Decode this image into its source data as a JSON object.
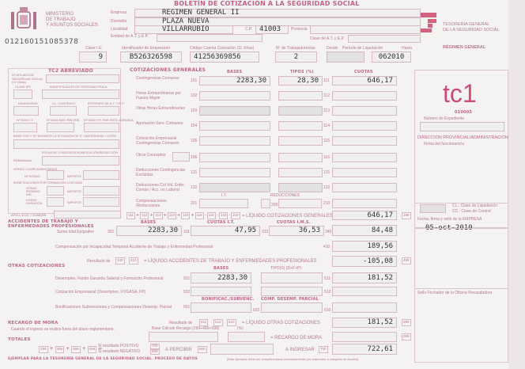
{
  "header": {
    "title": "BOLETÍN DE COTIZACIÓN A LA SEGURIDAD SOCIAL",
    "ministry": [
      "MINISTERIO",
      "DE TRABAJO",
      "Y ASUNTOS SOCIALES"
    ],
    "tgss": [
      "TESORERÍA GENERAL",
      "DE LA SEGURIDAD SOCIAL"
    ],
    "regimen": "RÉGIMEN GENERAL",
    "barcode_number": "012160151085378",
    "accent": "#c0648a"
  },
  "empresa": {
    "empresa_label": "Empresa",
    "empresa": "REGIMEN GENERAL II",
    "domicilio_label": "Domicilio",
    "domicilio": "PLAZA NUEVA",
    "localidad_label": "Localidad",
    "localidad": "VILLARRUBIO",
    "cp_label": "C.P.",
    "cp": "41003",
    "provincia_label": "Provincia",
    "entidad_label": "Entidad de A.T. y E.P.",
    "clave_at_label": "Clave de A.T. y E.P."
  },
  "ids": {
    "clave_ie_label": "Clave I.E.",
    "clave_ie": "9",
    "identificador_label": "Identificador de Empresario",
    "identificador": "B526326598",
    "ccc_label": "Código Cuenta Cotización (11 cifras)",
    "ccc": "41256369856",
    "trabajadores_label": "Nº de Trabajadores/as",
    "trabajadores": "2",
    "desde_label": "Desde",
    "periodo_label": "Período de Liquidación",
    "hasta_label": "Hasta",
    "hasta": "062010"
  },
  "tc2": {
    "title": "TC2 ABREVIADO",
    "afiliacion": "Nº AFILIACIÓN SEGURIDAD SOCIAL (12 cifras)",
    "clave_ipf": "CLAVE IPF",
    "identificador_pf": "IDENTIFICADOR DE PERSONA FÍSICA",
    "dias_horas": "DÍAS/HORAS",
    "cl_contrato": "CL. CONTRATO",
    "epigrafe": "EPÍGRAFE DE A.T. Y E.P.",
    "dias_it": "Nº DÍAS I.T.",
    "dias_maternidad": "Nº DÍAS MAT./PAT./RIE.",
    "dias_sit": "Nº DÍAS SIT. PAR./RED.JORNADA",
    "base_it": "BASE IT/AT Y EP DURANTE LA SITUACIÓN DE IT / MATERNIDAD / ILEPIB",
    "fecha_bonif": "FECHA DE CONCESIÓN BONIFICACIÓN/REDUCCIÓN",
    "ddmmaaaa": "DDMMAAAA",
    "horas_comp": "HORAS COMPLEMENTARIAS",
    "n_horas": "Nº HORAS",
    "importe": "IMPORTE",
    "bonif_formacion": "BONIFICACIONES POR FORMACIÓN CONTINUA",
    "horas_permiso": "HORAS PERMISO IND.",
    "horas_duracion": "HORAS DURACIÓN",
    "apellidos": "APELLIDOS Y NOMBRE"
  },
  "cotizaciones": {
    "title": "COTIZACIONES GENERALES",
    "bases": "BASES",
    "tipos": "TIPOS (%)",
    "cuotas": "CUOTAS",
    "rows": [
      {
        "label": "Contingencias Comunes",
        "code": "101",
        "base": "2283,30",
        "tipo": "28,30",
        "cuota_code": "111",
        "cuota": "646,17"
      },
      {
        "label": "Horas Extraordinarias por Fuerza Mayor",
        "code": "102",
        "base": "",
        "tipo": "",
        "cuota_code": "112",
        "cuota": ""
      },
      {
        "label": "Otras Horas Extraordinarias",
        "code": "103",
        "base": "",
        "tipo": "",
        "cuota_code": "113",
        "cuota": ""
      },
      {
        "label": "Aportación Serv. Comunes",
        "code": "104",
        "base": "",
        "tipo": "",
        "cuota_code": "114",
        "cuota": ""
      },
      {
        "label": "Cotización Empresarial Contingencias Comunes",
        "code": "105",
        "base": "",
        "tipo": "",
        "cuota_code": "115",
        "cuota": ""
      },
      {
        "label": "Otros Conceptos",
        "code": "106",
        "base": "",
        "tipo": "",
        "cuota_code": "116",
        "cuota": ""
      },
      {
        "label": "Deducciones Contingencias Excluidas",
        "code": "121",
        "base": "",
        "tipo": "",
        "cuota_code": "131",
        "cuota": ""
      },
      {
        "label": "Deducciones Col.Vol. Enfer. Común / Acc. no Laboral",
        "code": "122",
        "base": "",
        "tipo": "",
        "cuota_code": "132",
        "cuota": ""
      },
      {
        "label": "Compensaciones /Reducciones",
        "code": "201",
        "base": "",
        "tipo": "",
        "cuota_code": "210",
        "cuota": ""
      }
    ],
    "it_label": "I.T.",
    "reducciones_label": "REDUCCIONES",
    "reducciones_code": "209",
    "formula": [
      "111",
      "112",
      "113",
      "114",
      "115",
      "116",
      "131",
      "132",
      "210"
    ],
    "liquido_label": "= LÍQUIDO COTIZACIONES GENERALES",
    "liquido": "646,17",
    "liquido_code": "299"
  },
  "accidentes": {
    "title": [
      "ACCIDENTES DE TRABAJO Y",
      "ENFERMEDADES PROFESIONALES"
    ],
    "bases": "BASES",
    "cuotas_it": "CUOTAS I.T.",
    "cuotas_ims": "CUOTAS I.M.S.",
    "suma_label": "Suma total Epígrafes",
    "suma_code": "301",
    "base": "2283,30",
    "it_code": "311",
    "cuota_it": "47,95",
    "ims_code": "312",
    "cuota_ims": "36,53",
    "total_code": "340",
    "total": "84,48",
    "comp_label": "Compensación por Incapacidad Temporal Accidente de Trabajo y Enfermedad Profesional",
    "comp_code": "410",
    "comp": "189,56",
    "resultado_label": "Resultado de",
    "res_codes": [
      "340",
      "410"
    ],
    "liquido_label": "= LÍQUIDO ACCIDENTES DE TRABAJO Y ENFERMEDADES PROFESIONALES",
    "liquido": "-105,08",
    "liquido_code": "499"
  },
  "otras": {
    "title": "OTRAS COTIZACIONES",
    "bases": "BASES",
    "tipos": "TIPO(S) (D+F+P)",
    "desempleo_label": "Desempleo, Fondo Garantía Salarial y Formación Profesional",
    "desempleo_code": "501",
    "desempleo_base": "2283,30",
    "desempleo_cuota_code": "511",
    "desempleo_cuota": "181,52",
    "empresarial_label": "Cotización Empresarial (Desempleo, FOGASA, FP)",
    "empresarial_code": "502",
    "empresarial_cuota_code": "512",
    "bonif_header": "BONIFICAC./SUBVENC.",
    "comp_header": "COMP. DESEMP. PARCIAL",
    "bonif_label": "Bonificaciones Subvenciones y Compensaciones Desemp. Parcial",
    "bonif_code": "601",
    "bonif_code2": "602",
    "bonif_code3": "610",
    "resultado_label": "Resultado de",
    "res_codes": [
      "511",
      "512",
      "610"
    ],
    "liquido_label": "= LÍQUIDO OTRAS COTIZACIONES",
    "liquido": "181,52",
    "liquido_code": "699"
  },
  "recargo": {
    "title": "RECARGO DE MORA",
    "subtitle": "Cuando el ingreso se realice fuera del plazo reglamentario.",
    "base_label": "Base Cálculo Recargo (299+499+699)",
    "pct_label": "(%)",
    "recargo_label": "= RECARGO DE MORA",
    "code": "099"
  },
  "totales": {
    "title": "TOTALES",
    "codes": [
      "299",
      "499",
      "699",
      "099"
    ],
    "positivo": "Si resultado POSITIVO",
    "negativo": "Si resultado NEGATIVO",
    "code_700": "700",
    "code_800": "800",
    "percibir_label": "A PERCIBIR",
    "ingresar_label": "A INGRESAR",
    "ingresar_code": "700",
    "ingresar": "722,61",
    "footer": "EJEMPLAR PARA LA TESORERÍA GENERAL DE LA SEGURIDAD SOCIAL. PROCESO DE DATOS",
    "footer_note": "(Este ejemplar debe ser cumplimentado exclusivamente por ordenador o máquina de escribir)"
  },
  "side": {
    "form": "tc1",
    "form_code": "010005",
    "expediente_label": "Número de Expediente",
    "direccion": "DIRECCIÓN PROVINCIAL/ADMINISTRACIÓN",
    "firma_funcionario": "Firma del funcionario/a",
    "cl_label": "CL.: Clase de Liquidación",
    "cc_label": "CC.: Clase de Control",
    "fecha_label": "Fecha, firma y sello de la EMPRESA",
    "fecha": "05-oct-2010",
    "sello": "Sello Fechador de la Oficina Recaudadora"
  }
}
